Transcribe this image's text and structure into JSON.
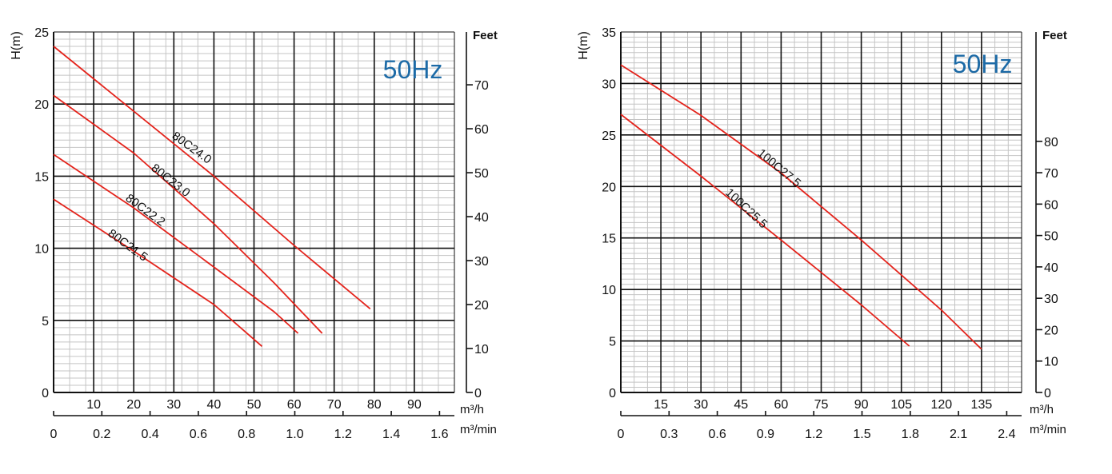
{
  "chart_data": [
    {
      "type": "line",
      "frequency_label": "50Hz",
      "ylabel": "H(m)",
      "ylabel_right": "Feet",
      "xlabel": "m³/h",
      "xlabel2": "m³/min",
      "xlim": [
        0,
        100
      ],
      "ylim": [
        0,
        25
      ],
      "x_ticks": [
        "10",
        "20",
        "30",
        "40",
        "50",
        "60",
        "70",
        "80",
        "90"
      ],
      "y_ticks": [
        "0",
        "5",
        "10",
        "15",
        "20",
        "25"
      ],
      "feet_ticks": [
        "0",
        "10",
        "20",
        "30",
        "40",
        "50",
        "60",
        "70"
      ],
      "x2_ticks": [
        "0",
        "0.2",
        "0.4",
        "0.6",
        "0.8",
        "1.0",
        "1.2",
        "1.4",
        "1.6"
      ],
      "series": [
        {
          "name": "80C24.0",
          "x": [
            0,
            20,
            40,
            60,
            79
          ],
          "y": [
            24.0,
            19.5,
            15.0,
            10.2,
            5.8
          ]
        },
        {
          "name": "80C23.0",
          "x": [
            0,
            20,
            40,
            55,
            67
          ],
          "y": [
            20.6,
            16.6,
            11.7,
            7.6,
            4.1
          ]
        },
        {
          "name": "80C22.2",
          "x": [
            0,
            20,
            40,
            55,
            61
          ],
          "y": [
            16.5,
            12.8,
            8.7,
            5.6,
            4.1
          ]
        },
        {
          "name": "80C21.5",
          "x": [
            0,
            20,
            40,
            52
          ],
          "y": [
            13.4,
            9.8,
            6.1,
            3.2
          ]
        }
      ]
    },
    {
      "type": "line",
      "frequency_label": "50Hz",
      "ylabel": "H(m)",
      "ylabel_right": "Feet",
      "xlabel": "m³/h",
      "xlabel2": "m³/min",
      "xlim": [
        0,
        150
      ],
      "ylim": [
        0,
        35
      ],
      "x_ticks": [
        "15",
        "30",
        "45",
        "60",
        "75",
        "90",
        "105",
        "120",
        "135"
      ],
      "y_ticks": [
        "0",
        "5",
        "10",
        "15",
        "20",
        "25",
        "30",
        "35"
      ],
      "feet_ticks": [
        "0",
        "10",
        "20",
        "30",
        "40",
        "50",
        "60",
        "70",
        "80"
      ],
      "x2_ticks": [
        "0",
        "0.3",
        "0.6",
        "0.9",
        "1.2",
        "1.5",
        "1.8",
        "2.1",
        "2.4"
      ],
      "series": [
        {
          "name": "100C27.5",
          "x": [
            0,
            30,
            60,
            90,
            120,
            135
          ],
          "y": [
            31.8,
            26.9,
            21.3,
            14.8,
            8.0,
            4.2
          ]
        },
        {
          "name": "100C25.5",
          "x": [
            0,
            30,
            60,
            90,
            108
          ],
          "y": [
            27.0,
            21.0,
            14.8,
            8.5,
            4.5
          ]
        }
      ]
    }
  ]
}
